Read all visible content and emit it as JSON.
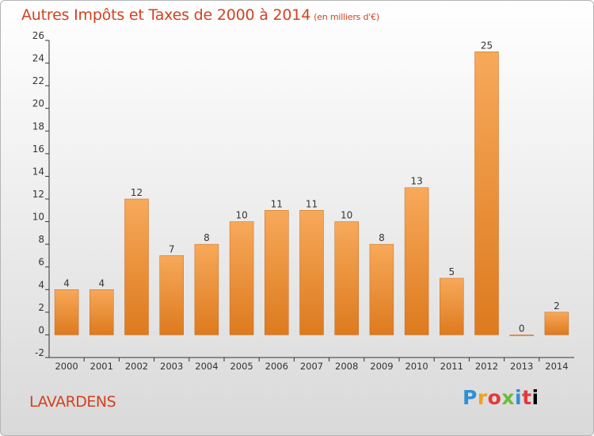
{
  "header": {
    "title": "Autres Impôts et Taxes de 2000 à 2014",
    "subtitle": "(en milliers d'€)"
  },
  "footer": {
    "commune": "LAVARDENS",
    "logo_letters": [
      "P",
      "r",
      "o",
      "x",
      "i",
      "t",
      "i"
    ]
  },
  "colors": {
    "title": "#d2421f",
    "bar_light": "#f7a95a",
    "bar_dark": "#dd7a1e",
    "axis": "#333333"
  },
  "chart_data": {
    "type": "bar",
    "title": "Autres Impôts et Taxes de 2000 à 2014",
    "categories": [
      "2000",
      "2001",
      "2002",
      "2003",
      "2004",
      "2005",
      "2006",
      "2007",
      "2008",
      "2009",
      "2010",
      "2011",
      "2012",
      "2013",
      "2014"
    ],
    "values": [
      4,
      4,
      12,
      7,
      8,
      10,
      11,
      11,
      10,
      8,
      13,
      5,
      25,
      0,
      2
    ],
    "ylim": [
      -2,
      26
    ],
    "yticks": [
      -2,
      0,
      2,
      4,
      6,
      8,
      10,
      12,
      14,
      16,
      18,
      20,
      22,
      24,
      26
    ],
    "grid": false,
    "xlabel": "",
    "ylabel": ""
  }
}
